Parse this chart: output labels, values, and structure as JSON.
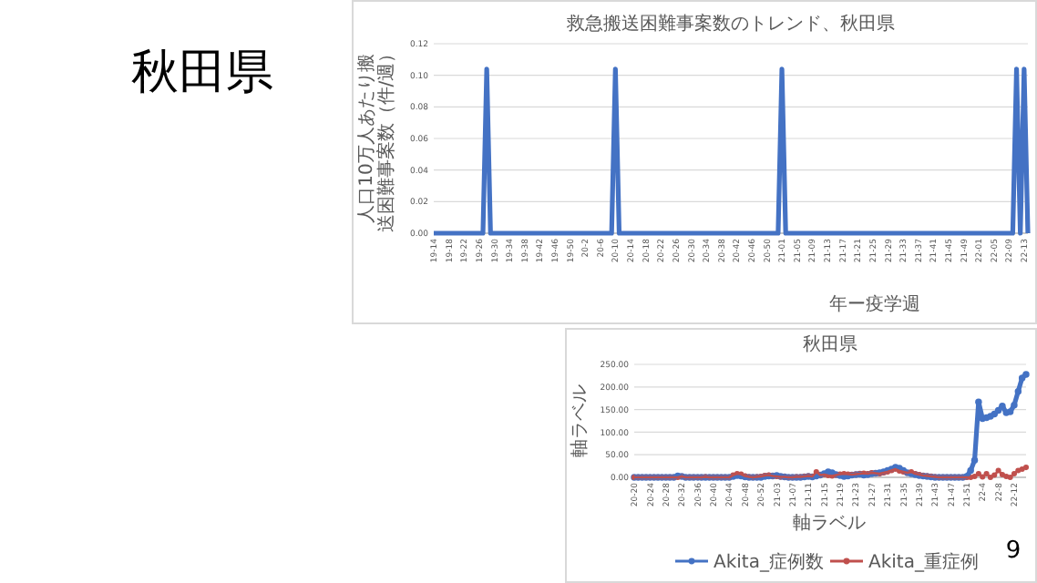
{
  "chart_data": [
    {
      "type": "other",
      "title": "秋田県",
      "annotations": [
        "9"
      ]
    },
    {
      "type": "line",
      "title": "救急搬送困難事案数のトレンド、秋田県",
      "ylabel": "人口10万人あたり搬送困難事案数（件/週）",
      "xlabel": "年ー疫学週",
      "grid": "y",
      "marker": "none",
      "categories": [
        "19-14",
        null,
        null,
        null,
        "19-18",
        null,
        null,
        null,
        "19-22",
        null,
        null,
        null,
        "19-26",
        null,
        null,
        null,
        "19-30",
        null,
        null,
        null,
        "19-34",
        null,
        null,
        null,
        "19-38",
        null,
        null,
        null,
        "19-42",
        null,
        null,
        null,
        "19-46",
        null,
        null,
        null,
        "19-50",
        null,
        null,
        null,
        "20-2",
        null,
        null,
        null,
        "20-6",
        null,
        null,
        null,
        "20-10",
        null,
        null,
        null,
        "20-14",
        null,
        null,
        null,
        "20-18",
        null,
        null,
        null,
        "20-22",
        null,
        null,
        null,
        "20-26",
        null,
        null,
        null,
        "20-30",
        null,
        null,
        null,
        "20-34",
        null,
        null,
        null,
        "20-38",
        null,
        null,
        null,
        "20-42",
        null,
        null,
        null,
        "20-46",
        null,
        null,
        null,
        "20-50",
        null,
        null,
        null,
        "21-01",
        null,
        null,
        null,
        "21-05",
        null,
        null,
        null,
        "21-09",
        null,
        null,
        null,
        "21-13",
        null,
        null,
        null,
        "21-17",
        null,
        null,
        null,
        "21-21",
        null,
        null,
        null,
        "21-25",
        null,
        null,
        null,
        "21-29",
        null,
        null,
        null,
        "21-33",
        null,
        null,
        null,
        "21-37",
        null,
        null,
        null,
        "21-41",
        null,
        null,
        null,
        "21-45",
        null,
        null,
        null,
        "21-49",
        null,
        null,
        null,
        "22-01",
        null,
        null,
        null,
        "22-05",
        null,
        null,
        null,
        "22-09",
        null,
        null,
        null,
        "22-13",
        null
      ],
      "series": [
        {
          "color": "#4472c4",
          "values": [
            0,
            0,
            0,
            0,
            0,
            0,
            0,
            0,
            0,
            0,
            0,
            0,
            0,
            0,
            0.104,
            0,
            0,
            0,
            0,
            0,
            0,
            0,
            0,
            0,
            0,
            0,
            0,
            0,
            0,
            0,
            0,
            0,
            0,
            0,
            0,
            0,
            0,
            0,
            0,
            0,
            0,
            0,
            0,
            0,
            0,
            0,
            0,
            0,
            0.104,
            0,
            0,
            0,
            0,
            0,
            0,
            0,
            0,
            0,
            0,
            0,
            0,
            0,
            0,
            0,
            0,
            0,
            0,
            0,
            0,
            0,
            0,
            0,
            0,
            0,
            0,
            0,
            0,
            0,
            0,
            0,
            0,
            0,
            0,
            0,
            0,
            0,
            0,
            0,
            0,
            0,
            0,
            0,
            0.104,
            0,
            0,
            0,
            0,
            0,
            0,
            0,
            0,
            0,
            0,
            0,
            0,
            0,
            0,
            0,
            0,
            0,
            0,
            0,
            0,
            0,
            0,
            0,
            0,
            0,
            0,
            0,
            0,
            0,
            0,
            0,
            0,
            0,
            0,
            0,
            0,
            0,
            0,
            0,
            0,
            0,
            0,
            0,
            0,
            0,
            0,
            0,
            0,
            0,
            0,
            0,
            0,
            0,
            0,
            0,
            0,
            0,
            0,
            0,
            0,
            0,
            0.104,
            0,
            0.104,
            0
          ]
        }
      ],
      "ylim": [
        0,
        0.12
      ],
      "yticks": [
        {
          "value": 0,
          "label": "0.00"
        },
        {
          "value": 0.02,
          "label": "0.02"
        },
        {
          "value": 0.04,
          "label": "0.04"
        },
        {
          "value": 0.06,
          "label": "0.06"
        },
        {
          "value": 0.08,
          "label": "0.08"
        },
        {
          "value": 0.1,
          "label": "0.10"
        },
        {
          "value": 0.12,
          "label": "0.12"
        }
      ]
    },
    {
      "type": "line",
      "title": "秋田県",
      "xlabel": "軸ラベル",
      "ylabel": "軸ラベル",
      "grid": "y",
      "marker": "circle",
      "legend": "bottom",
      "categories": [
        "20-20",
        null,
        null,
        null,
        "20-24",
        null,
        null,
        null,
        "20-28",
        null,
        null,
        null,
        "20-32",
        null,
        null,
        null,
        "20-36",
        null,
        null,
        null,
        "20-40",
        null,
        null,
        null,
        "20-44",
        null,
        null,
        null,
        "20-48",
        null,
        null,
        null,
        "20-52",
        null,
        null,
        null,
        "21-03",
        null,
        null,
        null,
        "21-07",
        null,
        null,
        null,
        "21-11",
        null,
        null,
        null,
        "21-15",
        null,
        null,
        null,
        "21-19",
        null,
        null,
        null,
        "21-23",
        null,
        null,
        null,
        "21-27",
        null,
        null,
        null,
        "21-31",
        null,
        null,
        null,
        "21-35",
        null,
        null,
        null,
        "21-39",
        null,
        null,
        null,
        "21-43",
        null,
        null,
        null,
        "21-47",
        null,
        null,
        null,
        "21-51",
        null,
        null,
        null,
        "22-4",
        null,
        null,
        null,
        "22-8",
        null,
        null,
        null,
        "22-12",
        null,
        null,
        null
      ],
      "series": [
        {
          "name": "Akita_症例数",
          "color": "#4472c4",
          "values": [
            0,
            0,
            0,
            0,
            0,
            0,
            0,
            0,
            0,
            0,
            0,
            3,
            2,
            0,
            0,
            0,
            0,
            0,
            0,
            0,
            0,
            0,
            0,
            0,
            0,
            2,
            4,
            3,
            1,
            0,
            0,
            0,
            0,
            2,
            3,
            3,
            4,
            2,
            1,
            0,
            0,
            0,
            0,
            1,
            2,
            1,
            3,
            5,
            8,
            12,
            10,
            6,
            4,
            2,
            3,
            5,
            6,
            7,
            5,
            6,
            8,
            9,
            10,
            12,
            15,
            18,
            22,
            20,
            15,
            10,
            8,
            6,
            4,
            3,
            2,
            1,
            0,
            0,
            0,
            0,
            0,
            0,
            0,
            0,
            2,
            15,
            38,
            167,
            130,
            132,
            135,
            140,
            148,
            158,
            143,
            145,
            160,
            190,
            220,
            228
          ]
        },
        {
          "name": "Akita_重症例",
          "color": "#c0504d",
          "values": [
            0,
            0,
            0,
            0,
            0,
            0,
            0,
            0,
            0,
            0,
            0,
            0,
            2,
            0,
            0,
            0,
            0,
            0,
            1,
            0,
            0,
            0,
            0,
            0,
            0,
            5,
            8,
            7,
            3,
            1,
            0,
            1,
            2,
            4,
            5,
            3,
            2,
            1,
            1,
            0,
            0,
            1,
            1,
            2,
            3,
            2,
            12,
            5,
            6,
            4,
            3,
            5,
            7,
            8,
            7,
            6,
            7,
            8,
            9,
            8,
            10,
            9,
            8,
            10,
            12,
            15,
            18,
            14,
            12,
            10,
            12,
            8,
            6,
            4,
            3,
            2,
            1,
            0,
            0,
            0,
            0,
            0,
            0,
            0,
            0,
            0,
            2,
            8,
            1,
            8,
            0,
            5,
            15,
            6,
            2,
            0,
            8,
            15,
            18,
            22
          ]
        }
      ],
      "ylim": [
        0,
        250
      ],
      "yticks": [
        {
          "value": 0,
          "label": "0.00"
        },
        {
          "value": 50,
          "label": "50.00"
        },
        {
          "value": 100,
          "label": "100.00"
        },
        {
          "value": 150,
          "label": "150.00"
        },
        {
          "value": 200,
          "label": "200.00"
        },
        {
          "value": 250,
          "label": "250.00"
        }
      ]
    }
  ]
}
